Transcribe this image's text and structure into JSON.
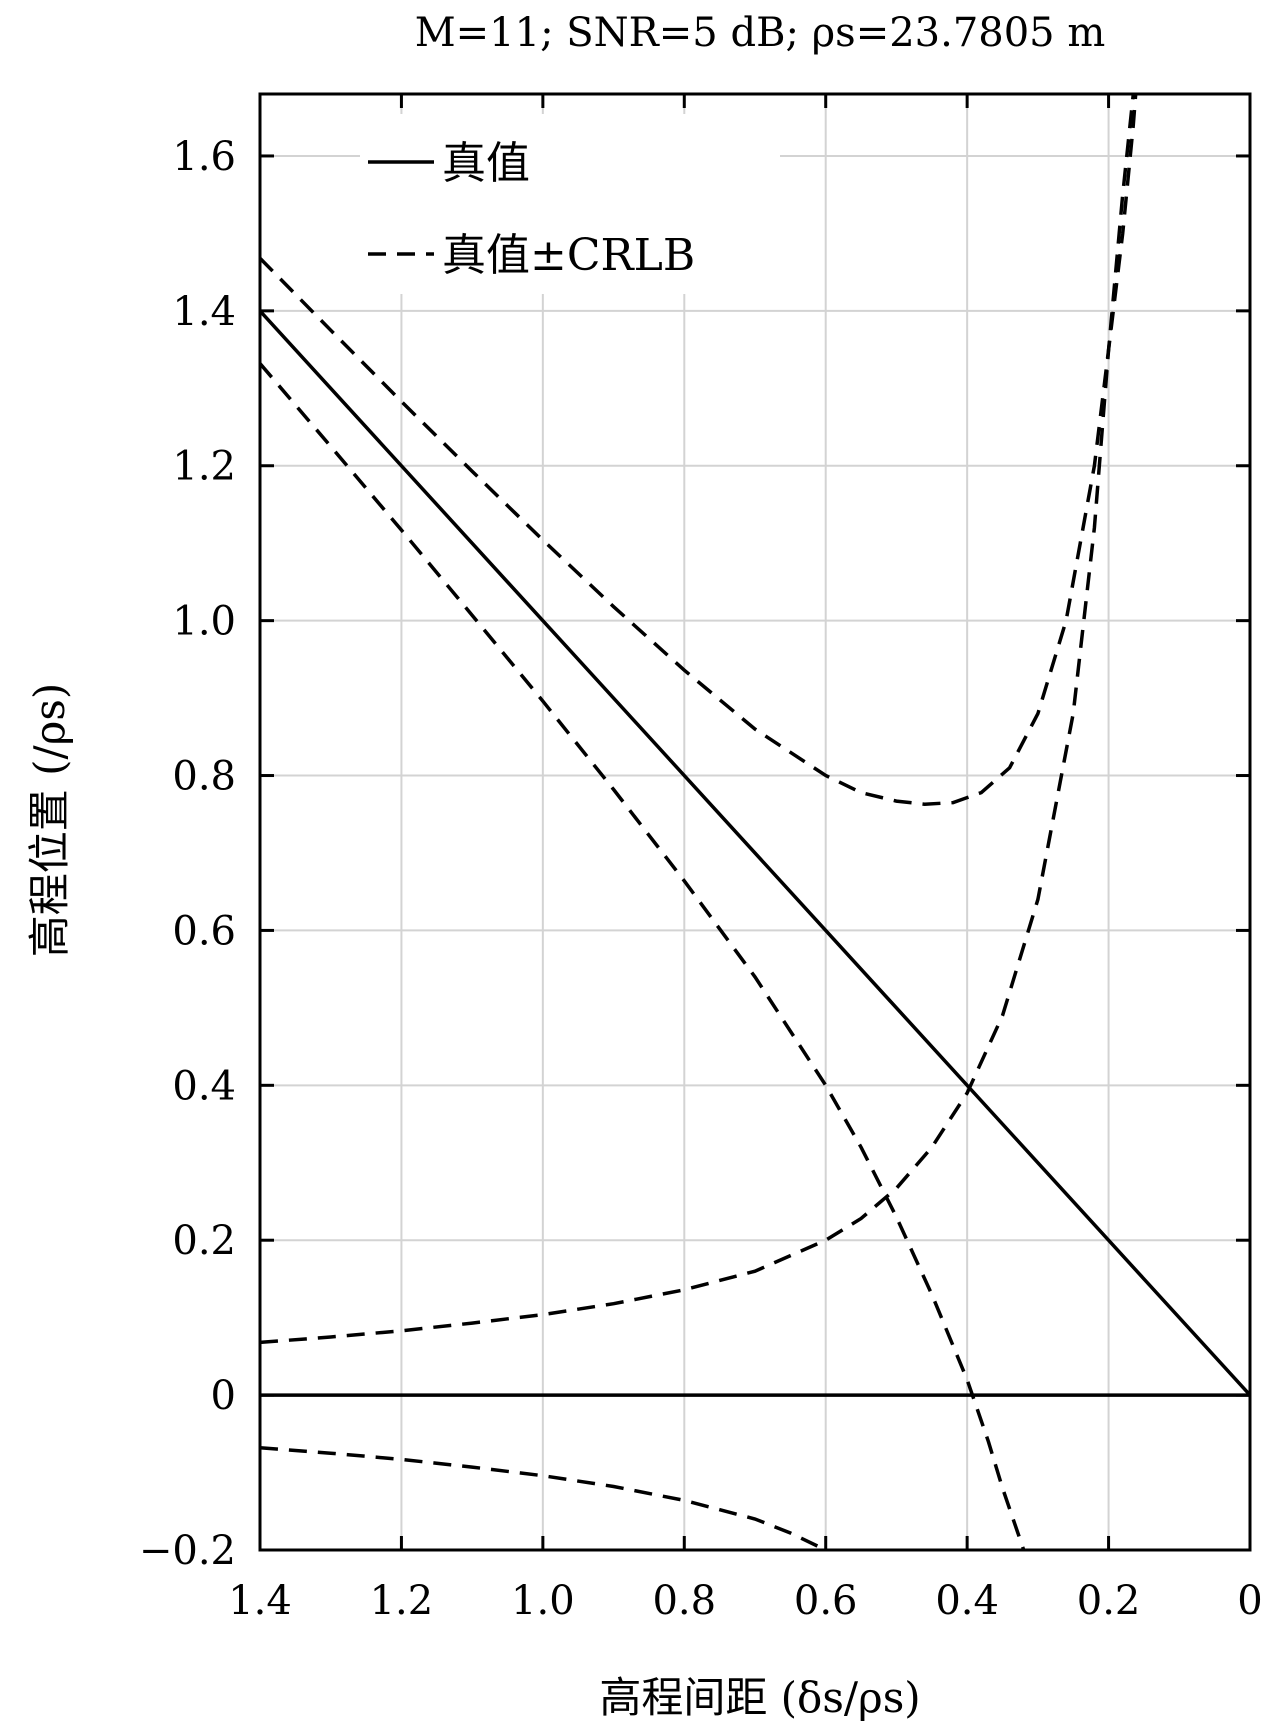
{
  "chart_data": {
    "type": "line",
    "title": "M=11; SNR=5 dB; ρs=23.7805 m",
    "xlabel": "高程间距 (δs/ρs)",
    "ylabel": "高程位置 (/ρs)",
    "xlim": [
      1.4,
      0
    ],
    "ylim": [
      -0.2,
      1.68
    ],
    "x_reversed": true,
    "grid": true,
    "legend_position": "top-left",
    "x_ticks": [
      "1.4",
      "1.2",
      "1.0",
      "0.8",
      "0.6",
      "0.4",
      "0.2",
      "0"
    ],
    "y_ticks": [
      "-0.2",
      "0",
      "0.2",
      "0.4",
      "0.6",
      "0.8",
      "1.0",
      "1.2",
      "1.4",
      "1.6"
    ],
    "legend": [
      {
        "label": "真值",
        "style": "solid"
      },
      {
        "label": "真值±CRLB",
        "style": "dashed"
      }
    ],
    "series": [
      {
        "name": "真值",
        "style": "solid",
        "x": [
          1.4,
          0
        ],
        "y": [
          1.4,
          0
        ]
      },
      {
        "name": "真值",
        "style": "solid",
        "x": [
          1.4,
          0
        ],
        "y": [
          0,
          0
        ]
      },
      {
        "name": "真值±CRLB",
        "style": "dashed",
        "x": [
          1.4,
          1.3,
          1.2,
          1.1,
          1.0,
          0.9,
          0.8,
          0.7,
          0.6,
          0.55,
          0.5,
          0.46,
          0.42,
          0.38,
          0.34,
          0.3,
          0.26,
          0.22,
          0.2,
          0.18,
          0.165,
          0.16
        ],
        "y": [
          1.468,
          1.375,
          1.283,
          1.193,
          1.104,
          1.018,
          0.936,
          0.86,
          0.8,
          0.778,
          0.767,
          0.763,
          0.765,
          0.778,
          0.81,
          0.88,
          1.0,
          1.2,
          1.35,
          1.5,
          1.64,
          1.7
        ]
      },
      {
        "name": "真值±CRLB",
        "style": "dashed",
        "x": [
          1.4,
          1.3,
          1.2,
          1.1,
          1.0,
          0.9,
          0.8,
          0.7,
          0.6,
          0.55,
          0.5,
          0.45,
          0.4,
          0.37,
          0.35,
          0.32
        ],
        "y": [
          1.332,
          1.225,
          1.117,
          1.007,
          0.896,
          0.782,
          0.664,
          0.54,
          0.4,
          0.32,
          0.23,
          0.13,
          0.02,
          -0.06,
          -0.12,
          -0.2
        ]
      },
      {
        "name": "真值±CRLB",
        "style": "dashed",
        "x": [
          1.4,
          1.3,
          1.2,
          1.1,
          1.0,
          0.9,
          0.8,
          0.7,
          0.6,
          0.55,
          0.5,
          0.45,
          0.4,
          0.35,
          0.3,
          0.25,
          0.22,
          0.2,
          0.18,
          0.165,
          0.155
        ],
        "y": [
          0.068,
          0.075,
          0.083,
          0.093,
          0.104,
          0.118,
          0.136,
          0.16,
          0.2,
          0.228,
          0.267,
          0.32,
          0.39,
          0.49,
          0.64,
          0.88,
          1.12,
          1.35,
          1.55,
          1.68,
          1.7
        ]
      },
      {
        "name": "真值±CRLB",
        "style": "dashed",
        "x": [
          1.4,
          1.3,
          1.2,
          1.1,
          1.0,
          0.9,
          0.8,
          0.7,
          0.65,
          0.6
        ],
        "y": [
          -0.068,
          -0.075,
          -0.083,
          -0.093,
          -0.104,
          -0.118,
          -0.136,
          -0.16,
          -0.178,
          -0.2
        ]
      }
    ]
  }
}
